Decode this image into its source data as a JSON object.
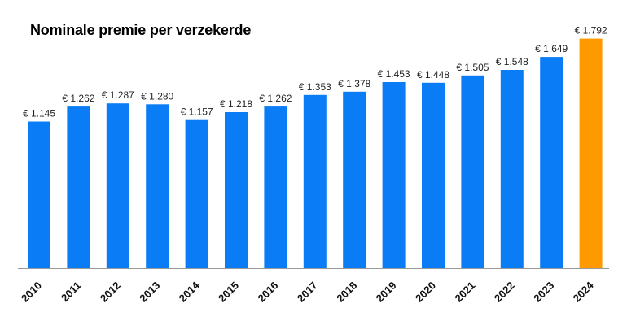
{
  "chart_data": {
    "type": "bar",
    "title": "Nominale premie per verzekerde",
    "categories": [
      "2010",
      "2011",
      "2012",
      "2013",
      "2014",
      "2015",
      "2016",
      "2017",
      "2018",
      "2019",
      "2020",
      "2021",
      "2022",
      "2023",
      "2024"
    ],
    "values": [
      1145,
      1262,
      1287,
      1280,
      1157,
      1218,
      1262,
      1353,
      1378,
      1453,
      1448,
      1505,
      1548,
      1649,
      1792
    ],
    "value_labels": [
      "€ 1.145",
      "€ 1.262",
      "€ 1.287",
      "€ 1.280",
      "€ 1.157",
      "€ 1.218",
      "€ 1.262",
      "€ 1.353",
      "€ 1.378",
      "€ 1.453",
      "€ 1.448",
      "€ 1.505",
      "€ 1.548",
      "€ 1.649",
      "€ 1.792"
    ],
    "highlight_category": "2024",
    "colors": {
      "bar": "#0a7cf5",
      "highlight": "#ff9900",
      "axis": "#999999"
    },
    "grid": false,
    "legend": "none",
    "xlabel": "",
    "ylabel": ""
  }
}
